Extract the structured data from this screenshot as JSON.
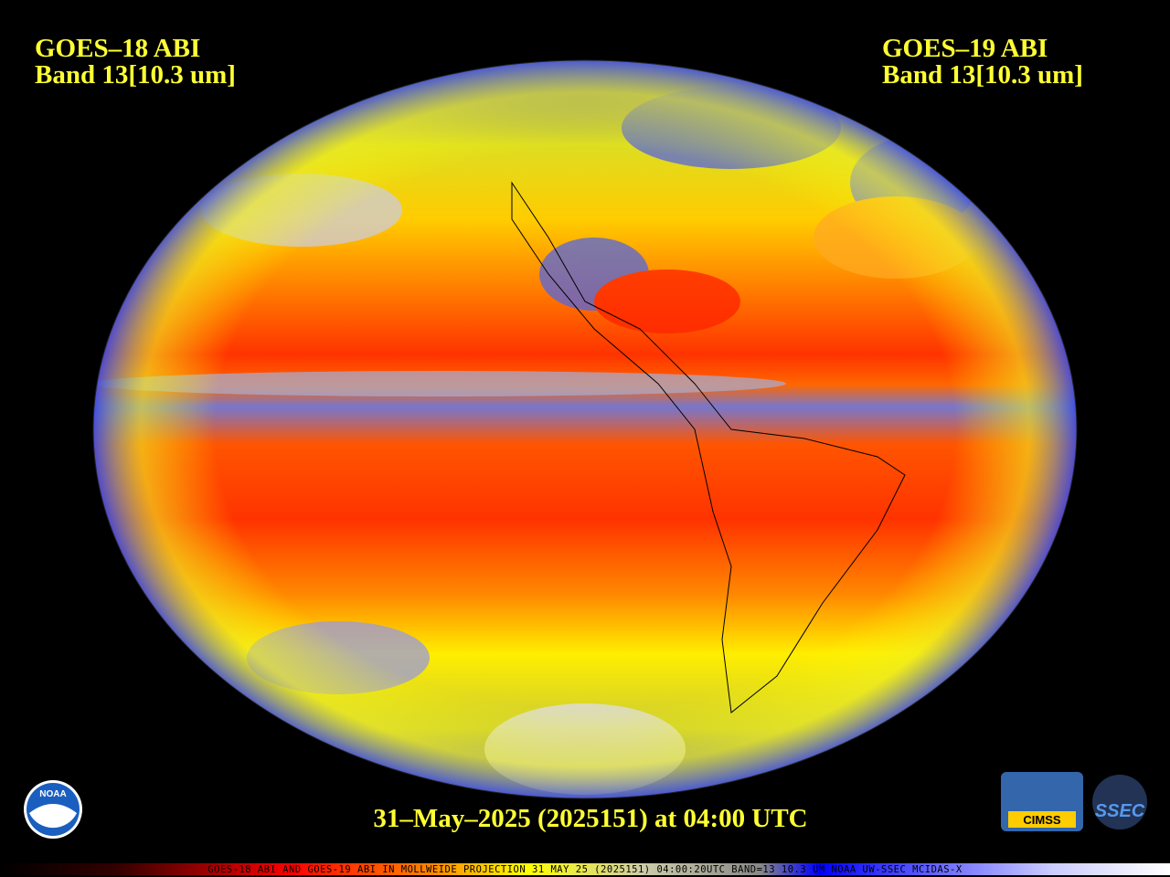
{
  "left_label": {
    "satellite": "GOES–18 ABI",
    "band": "Band 13[10.3 um]"
  },
  "right_label": {
    "satellite": "GOES–19 ABI",
    "band": "Band 13[10.3 um]"
  },
  "timestamp": "31–May–2025 (2025151) at 04:00 UTC",
  "footer": "GOES-18 ABI AND GOES-19 ABI IN MOLLWEIDE PROJECTION 31 MAY 25 (2025151) 04:00:20UTC BAND=13 10.3 UM NOAA UW-SSEC MCIDAS-X",
  "logos": {
    "noaa": "NOAA",
    "cimss": "CIMSS",
    "ssec": "SSEC"
  }
}
